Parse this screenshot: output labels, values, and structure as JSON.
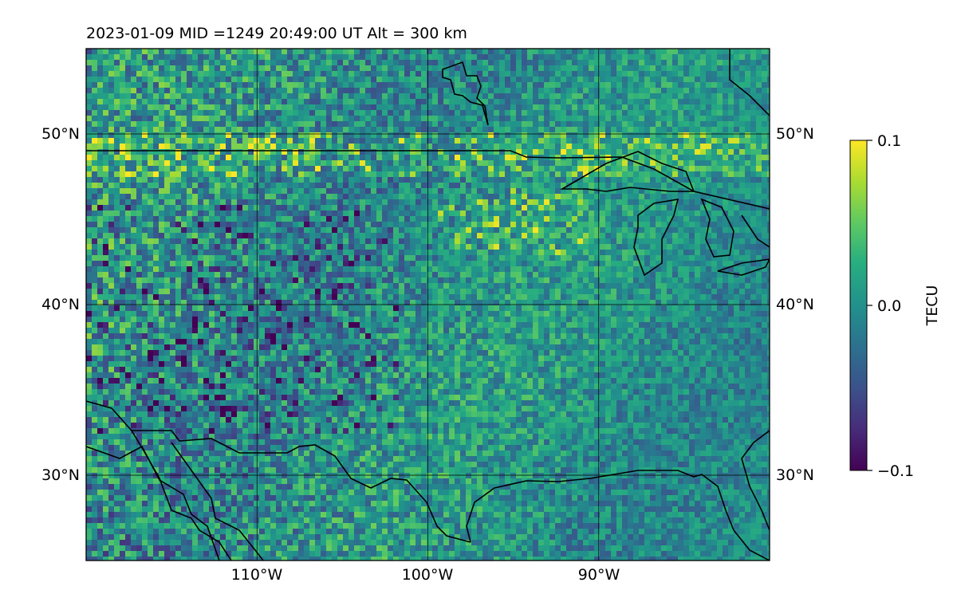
{
  "map": {
    "title": "2023-01-09  MID =1249    20:49:00  UT  Alt = 300 km",
    "extent": {
      "lon_min": -120,
      "lon_max": -80,
      "lat_min": 25,
      "lat_max": 55
    },
    "lat_ticks": [
      {
        "value": 50,
        "label": "50°N"
      },
      {
        "value": 40,
        "label": "40°N"
      },
      {
        "value": 30,
        "label": "30°N"
      }
    ],
    "lon_ticks": [
      {
        "value": -110,
        "label": "110°W"
      },
      {
        "value": -100,
        "label": "100°W"
      },
      {
        "value": -90,
        "label": "90°W"
      }
    ],
    "field": "gridded TEC perturbation (viridis), noisy ±0.1 TECU, strongest negatives in the west/southwest, positive bands near 45–50°N",
    "coastline_color": "#000000",
    "gridline_color": "#000000"
  },
  "colorbar": {
    "label": "TECU",
    "min": -0.1,
    "max": 0.1,
    "colormap": "viridis",
    "ticks": [
      {
        "value": 0.1,
        "label": "0.1"
      },
      {
        "value": 0.0,
        "label": "0.0"
      },
      {
        "value": -0.1,
        "label": "−0.1"
      }
    ]
  }
}
